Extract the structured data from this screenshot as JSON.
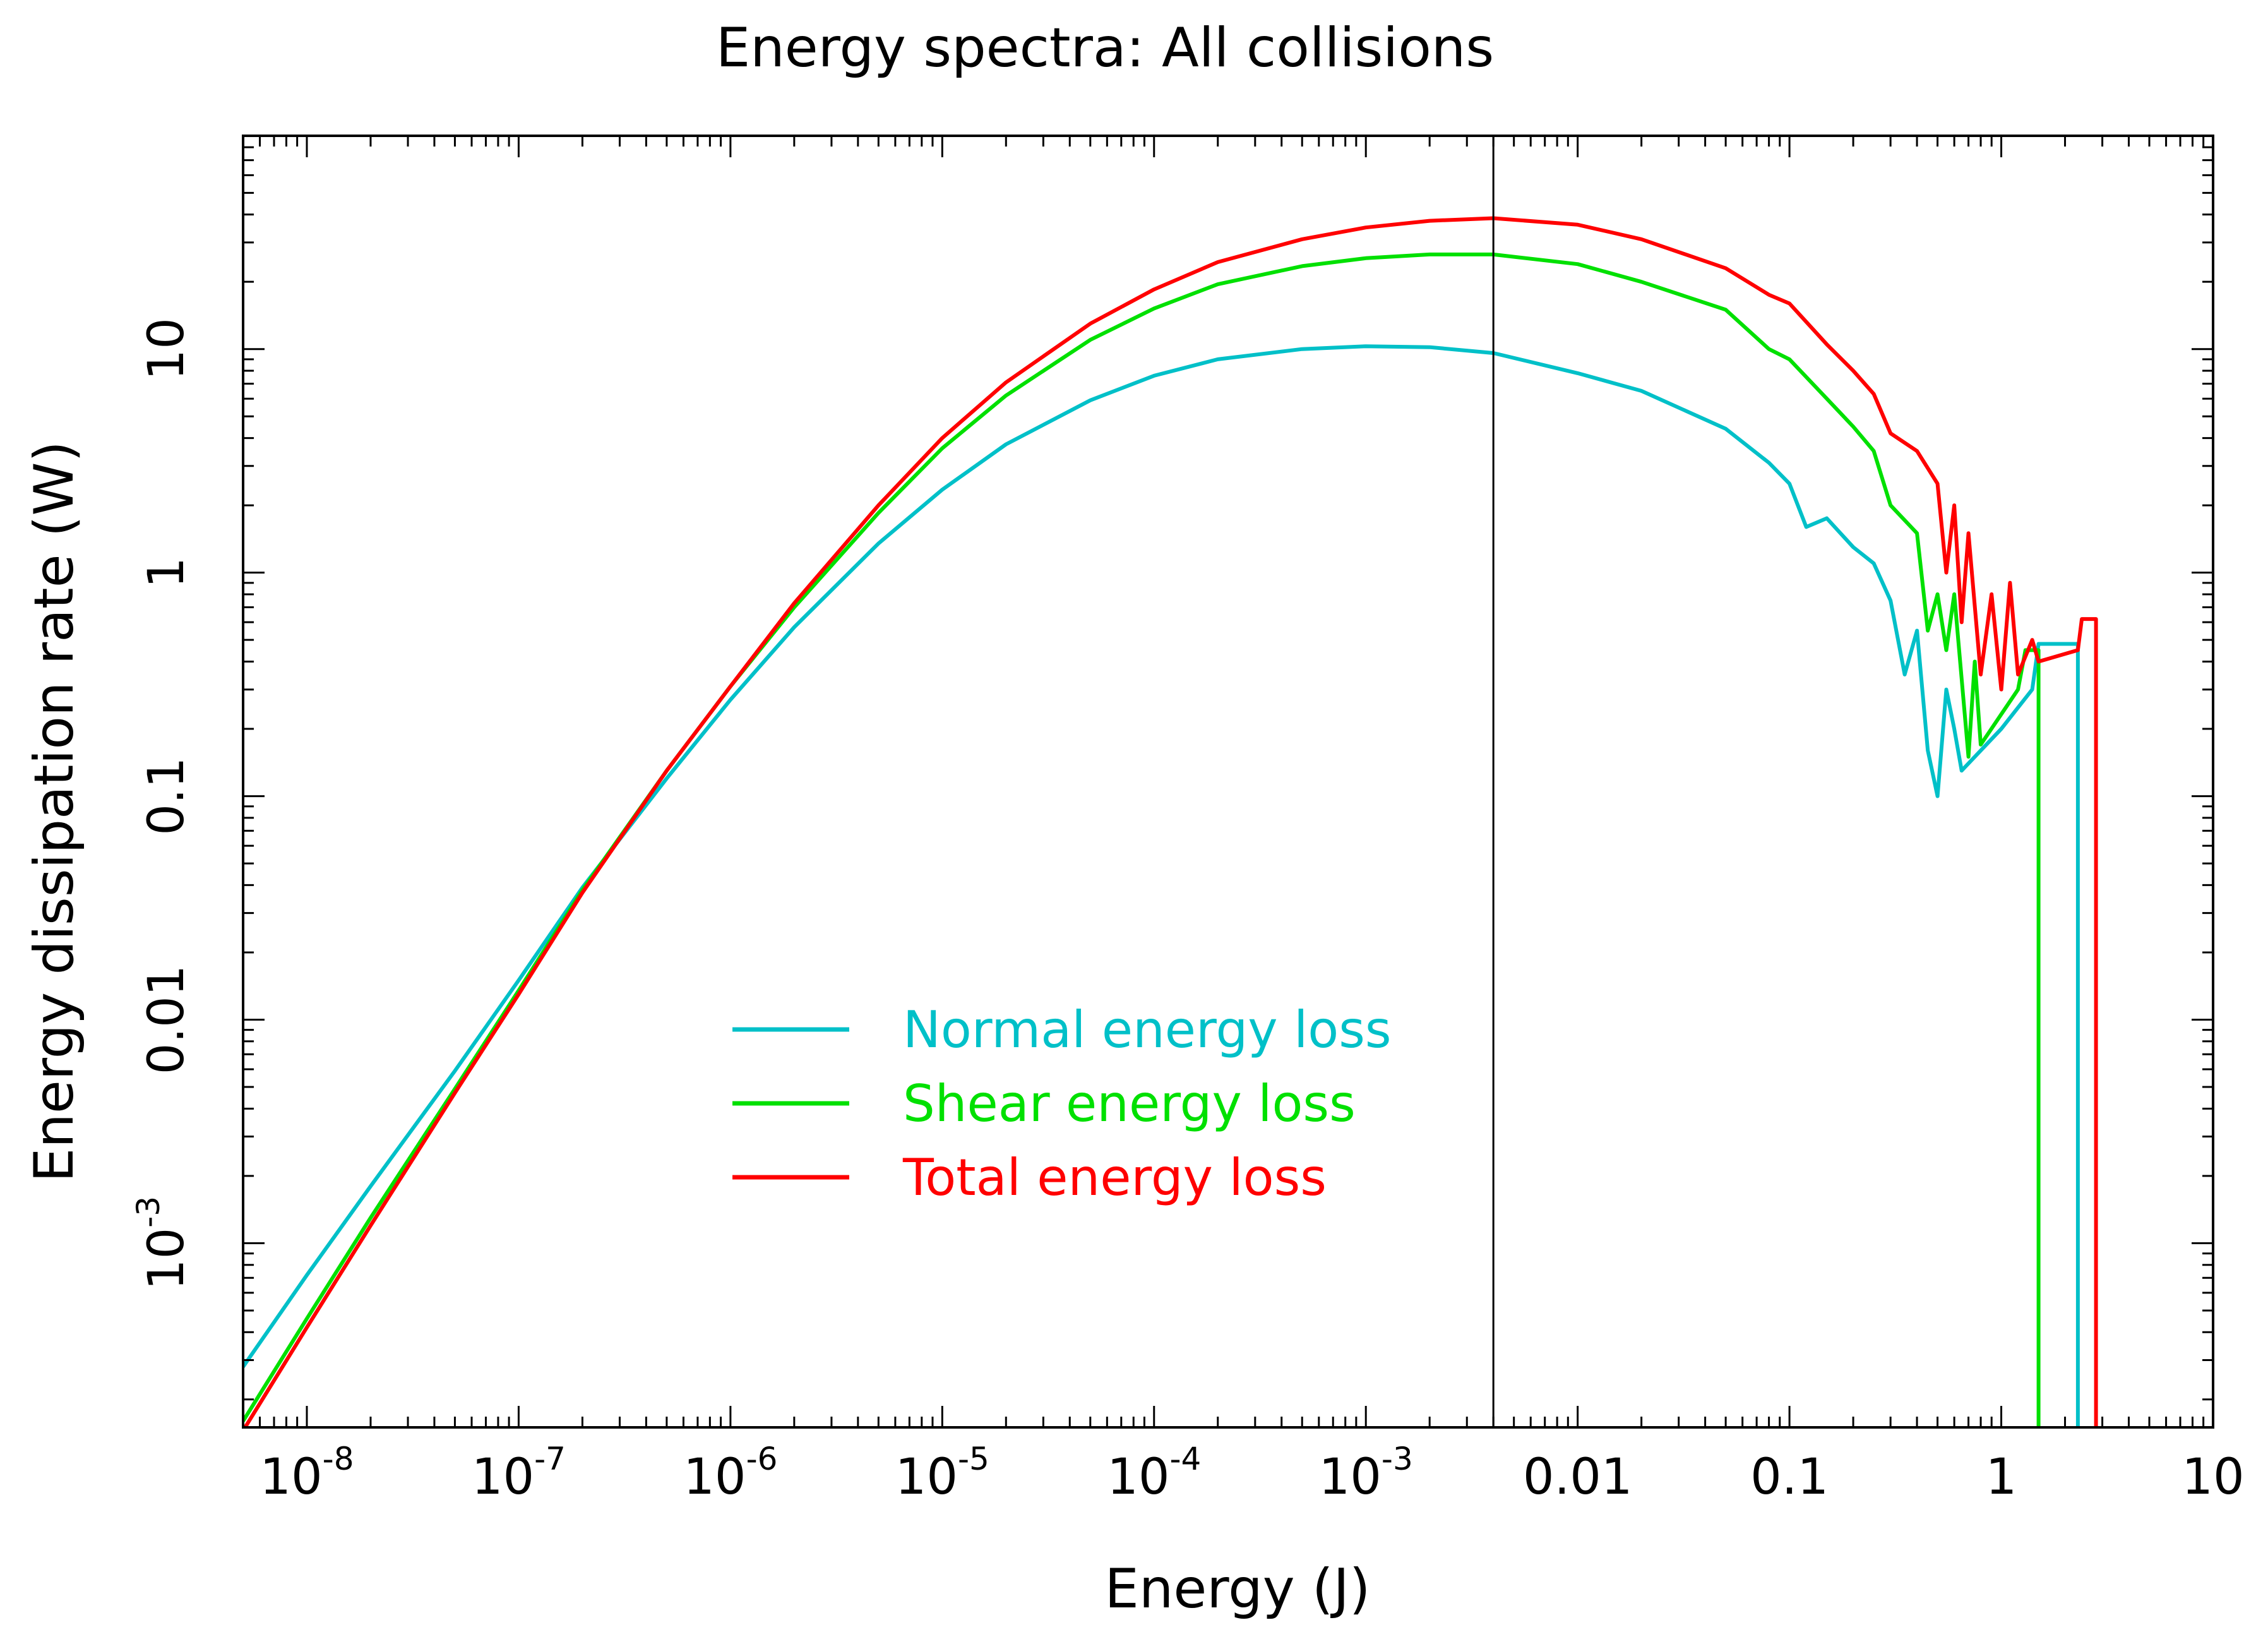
{
  "chart_data": {
    "type": "line",
    "title": "Energy spectra: All collisions",
    "xlabel": "Energy (J)",
    "ylabel": "Energy dissipation rate (W)",
    "x_scale": "log",
    "y_scale": "log",
    "xlim": [
      5e-09,
      10
    ],
    "ylim": [
      0.00015,
      90
    ],
    "grid": false,
    "legend_position": "center-left",
    "x_ticks": [
      {
        "value": 1e-08,
        "base": "10",
        "exp": "-8"
      },
      {
        "value": 1e-07,
        "base": "10",
        "exp": "-7"
      },
      {
        "value": 1e-06,
        "base": "10",
        "exp": "-6"
      },
      {
        "value": 1e-05,
        "base": "10",
        "exp": "-5"
      },
      {
        "value": 0.0001,
        "base": "10",
        "exp": "-4"
      },
      {
        "value": 0.001,
        "base": "10",
        "exp": "-3"
      },
      {
        "value": 0.01,
        "base": "0.01",
        "exp": ""
      },
      {
        "value": 0.1,
        "base": "0.1",
        "exp": ""
      },
      {
        "value": 1,
        "base": "1",
        "exp": ""
      },
      {
        "value": 10,
        "base": "10",
        "exp": ""
      }
    ],
    "y_ticks": [
      {
        "value": 0.001,
        "base": "10",
        "exp": "-3"
      },
      {
        "value": 0.01,
        "base": "0.01",
        "exp": ""
      },
      {
        "value": 0.1,
        "base": "0.1",
        "exp": ""
      },
      {
        "value": 1,
        "base": "1",
        "exp": ""
      },
      {
        "value": 10,
        "base": "10",
        "exp": ""
      }
    ],
    "vertical_line": {
      "x": 0.004,
      "color": "#000000"
    },
    "series": [
      {
        "name": "Normal energy loss",
        "color": "#00c0c8",
        "points": [
          [
            5e-09,
            0.00028
          ],
          [
            1e-08,
            0.00072
          ],
          [
            2e-08,
            0.0018
          ],
          [
            5e-08,
            0.0059
          ],
          [
            1e-07,
            0.015
          ],
          [
            2e-07,
            0.039
          ],
          [
            5e-07,
            0.12
          ],
          [
            1e-06,
            0.27
          ],
          [
            2e-06,
            0.57
          ],
          [
            5e-06,
            1.35
          ],
          [
            1e-05,
            2.35
          ],
          [
            2e-05,
            3.75
          ],
          [
            5e-05,
            5.9
          ],
          [
            0.0001,
            7.6
          ],
          [
            0.0002,
            9.0
          ],
          [
            0.0005,
            10.0
          ],
          [
            0.001,
            10.3
          ],
          [
            0.002,
            10.2
          ],
          [
            0.004,
            9.6
          ],
          [
            0.01,
            7.8
          ],
          [
            0.02,
            6.5
          ],
          [
            0.05,
            4.4
          ],
          [
            0.08,
            3.1
          ],
          [
            0.1,
            2.5
          ],
          [
            0.12,
            1.6
          ],
          [
            0.15,
            1.75
          ],
          [
            0.2,
            1.3
          ],
          [
            0.25,
            1.1
          ],
          [
            0.3,
            0.75
          ],
          [
            0.35,
            0.35
          ],
          [
            0.4,
            0.55
          ],
          [
            0.45,
            0.16
          ],
          [
            0.5,
            0.1
          ],
          [
            0.55,
            0.3
          ],
          [
            0.6,
            0.2
          ],
          [
            0.65,
            0.13
          ],
          [
            1.0,
            0.2
          ],
          [
            1.4,
            0.3
          ],
          [
            1.5,
            0.48
          ],
          [
            2.3,
            0.48
          ],
          [
            2.3,
            0.0001
          ]
        ]
      },
      {
        "name": "Shear energy loss",
        "color": "#00e000",
        "points": [
          [
            5e-09,
            0.00016
          ],
          [
            1e-08,
            0.00046
          ],
          [
            2e-08,
            0.0013
          ],
          [
            5e-08,
            0.0049
          ],
          [
            1e-07,
            0.0135
          ],
          [
            2e-07,
            0.038
          ],
          [
            5e-07,
            0.13
          ],
          [
            1e-06,
            0.31
          ],
          [
            2e-06,
            0.7
          ],
          [
            5e-06,
            1.85
          ],
          [
            1e-05,
            3.6
          ],
          [
            2e-05,
            6.2
          ],
          [
            5e-05,
            11.0
          ],
          [
            0.0001,
            15.2
          ],
          [
            0.0002,
            19.5
          ],
          [
            0.0005,
            23.5
          ],
          [
            0.001,
            25.5
          ],
          [
            0.002,
            26.5
          ],
          [
            0.004,
            26.5
          ],
          [
            0.01,
            24.0
          ],
          [
            0.02,
            20.0
          ],
          [
            0.05,
            15.0
          ],
          [
            0.08,
            10.0
          ],
          [
            0.1,
            9.0
          ],
          [
            0.15,
            6.0
          ],
          [
            0.2,
            4.5
          ],
          [
            0.25,
            3.5
          ],
          [
            0.3,
            2.0
          ],
          [
            0.4,
            1.5
          ],
          [
            0.45,
            0.55
          ],
          [
            0.5,
            0.8
          ],
          [
            0.55,
            0.45
          ],
          [
            0.6,
            0.8
          ],
          [
            0.7,
            0.15
          ],
          [
            0.75,
            0.4
          ],
          [
            0.8,
            0.17
          ],
          [
            1.2,
            0.3
          ],
          [
            1.3,
            0.45
          ],
          [
            1.5,
            0.45
          ],
          [
            1.5,
            0.0001
          ]
        ]
      },
      {
        "name": "Total energy loss",
        "color": "#ff0000",
        "points": [
          [
            5e-09,
            0.000145
          ],
          [
            1e-08,
            0.00042
          ],
          [
            2e-08,
            0.0012
          ],
          [
            5e-08,
            0.0047
          ],
          [
            1e-07,
            0.013
          ],
          [
            2e-07,
            0.037
          ],
          [
            5e-07,
            0.13
          ],
          [
            1e-06,
            0.31
          ],
          [
            2e-06,
            0.73
          ],
          [
            5e-06,
            2.0
          ],
          [
            1e-05,
            4.0
          ],
          [
            2e-05,
            7.1
          ],
          [
            5e-05,
            13.0
          ],
          [
            0.0001,
            18.5
          ],
          [
            0.0002,
            24.5
          ],
          [
            0.0005,
            31.0
          ],
          [
            0.001,
            35.0
          ],
          [
            0.002,
            37.5
          ],
          [
            0.004,
            38.5
          ],
          [
            0.01,
            36.0
          ],
          [
            0.02,
            31.0
          ],
          [
            0.05,
            23.0
          ],
          [
            0.08,
            17.5
          ],
          [
            0.1,
            16.0
          ],
          [
            0.15,
            10.5
          ],
          [
            0.2,
            8.0
          ],
          [
            0.25,
            6.3
          ],
          [
            0.3,
            4.2
          ],
          [
            0.4,
            3.5
          ],
          [
            0.5,
            2.5
          ],
          [
            0.55,
            1.0
          ],
          [
            0.6,
            2.0
          ],
          [
            0.65,
            0.6
          ],
          [
            0.7,
            1.5
          ],
          [
            0.8,
            0.35
          ],
          [
            0.9,
            0.8
          ],
          [
            1.0,
            0.3
          ],
          [
            1.1,
            0.9
          ],
          [
            1.2,
            0.35
          ],
          [
            1.4,
            0.5
          ],
          [
            1.5,
            0.4
          ],
          [
            2.3,
            0.45
          ],
          [
            2.4,
            0.62
          ],
          [
            2.8,
            0.62
          ],
          [
            2.8,
            0.0001
          ]
        ]
      }
    ]
  }
}
